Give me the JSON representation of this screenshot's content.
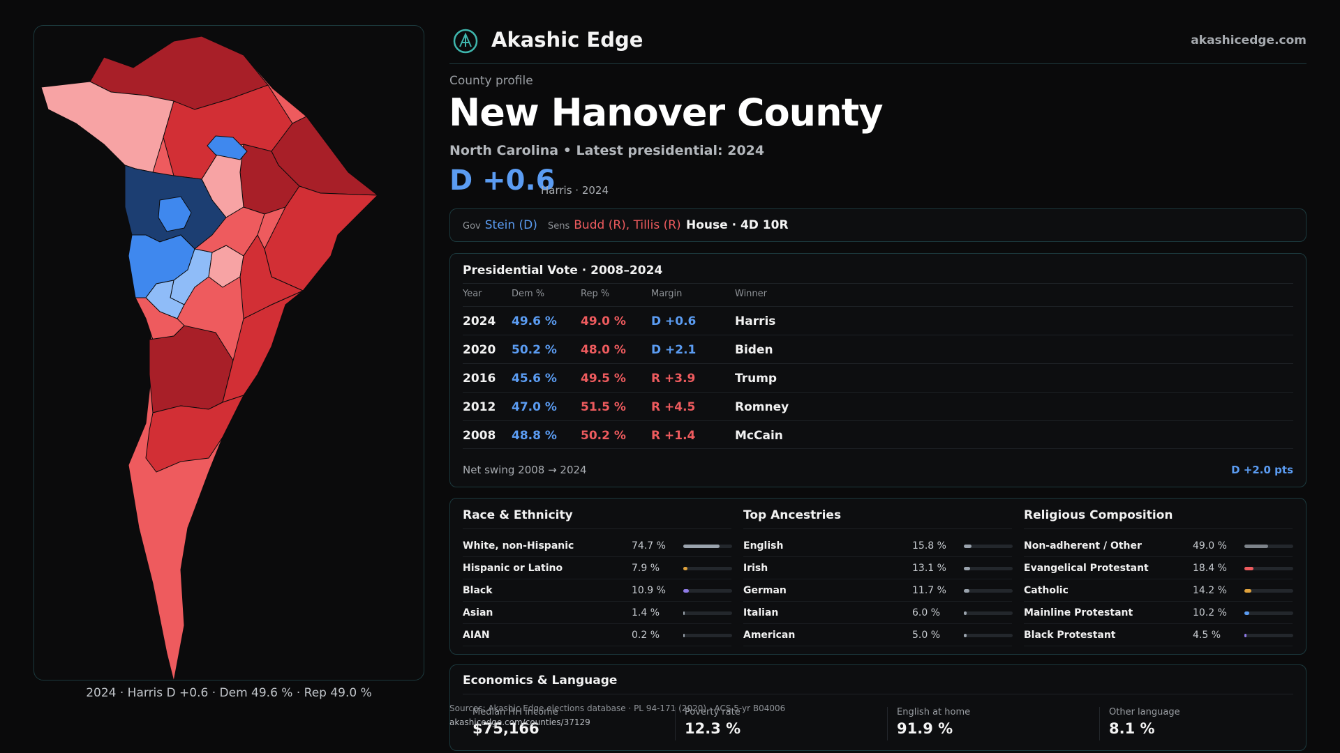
{
  "header": {
    "brand": "Akashic Edge",
    "site": "akashicedge.com"
  },
  "profile": {
    "eyebrow": "County profile",
    "county": "New Hanover County",
    "subtitle": "North Carolina • Latest presidential: 2024",
    "margin": "D +0.6",
    "margin_note": "Harris · 2024"
  },
  "offices": {
    "gov_label": "Gov",
    "gov_value": "Stein (D)",
    "sens_label": "Sens",
    "sens_value": "Budd (R), Tillis (R)",
    "house_value": "House · 4D 10R"
  },
  "presidential": {
    "title": "Presidential Vote · 2008–2024",
    "headers": [
      "Year",
      "Dem %",
      "Rep %",
      "Margin",
      "Winner"
    ],
    "rows": [
      {
        "year": "2024",
        "dem": "49.6 %",
        "rep": "49.0 %",
        "margin": "D +0.6",
        "winner": "Harris",
        "party": "D"
      },
      {
        "year": "2020",
        "dem": "50.2 %",
        "rep": "48.0 %",
        "margin": "D +2.1",
        "winner": "Biden",
        "party": "D"
      },
      {
        "year": "2016",
        "dem": "45.6 %",
        "rep": "49.5 %",
        "margin": "R +3.9",
        "winner": "Trump",
        "party": "R"
      },
      {
        "year": "2012",
        "dem": "47.0 %",
        "rep": "51.5 %",
        "margin": "R +4.5",
        "winner": "Romney",
        "party": "R"
      },
      {
        "year": "2008",
        "dem": "48.8 %",
        "rep": "50.2 %",
        "margin": "R +1.4",
        "winner": "McCain",
        "party": "R"
      }
    ],
    "swing_label": "Net swing 2008 → 2024",
    "swing_value": "D +2.0 pts"
  },
  "race": {
    "title": "Race & Ethnicity",
    "items": [
      {
        "label": "White, non-Hispanic",
        "pct": "74.7 %",
        "value": 0.747,
        "color": "#9aa3ad"
      },
      {
        "label": "Hispanic or Latino",
        "pct": "7.9 %",
        "value": 0.079,
        "color": "#e0a23c"
      },
      {
        "label": "Black",
        "pct": "10.9 %",
        "value": 0.109,
        "color": "#8f7be6"
      },
      {
        "label": "Asian",
        "pct": "1.4 %",
        "value": 0.014,
        "color": "#9aa3ad"
      },
      {
        "label": "AIAN",
        "pct": "0.2 %",
        "value": 0.002,
        "color": "#9aa3ad"
      }
    ]
  },
  "ancestry": {
    "title": "Top Ancestries",
    "items": [
      {
        "label": "English",
        "pct": "15.8 %",
        "value": 0.158,
        "color": "#9aa3ad"
      },
      {
        "label": "Irish",
        "pct": "13.1 %",
        "value": 0.131,
        "color": "#9aa3ad"
      },
      {
        "label": "German",
        "pct": "11.7 %",
        "value": 0.117,
        "color": "#9aa3ad"
      },
      {
        "label": "Italian",
        "pct": "6.0 %",
        "value": 0.06,
        "color": "#9aa3ad"
      },
      {
        "label": "American",
        "pct": "5.0 %",
        "value": 0.05,
        "color": "#9aa3ad"
      }
    ]
  },
  "religion": {
    "title": "Religious Composition",
    "items": [
      {
        "label": "Non-adherent / Other",
        "pct": "49.0 %",
        "value": 0.49,
        "color": "#7d838a"
      },
      {
        "label": "Evangelical Protestant",
        "pct": "18.4 %",
        "value": 0.184,
        "color": "#ee5b5e"
      },
      {
        "label": "Catholic",
        "pct": "14.2 %",
        "value": 0.142,
        "color": "#e0a23c"
      },
      {
        "label": "Mainline Protestant",
        "pct": "10.2 %",
        "value": 0.102,
        "color": "#5b9cf2"
      },
      {
        "label": "Black Protestant",
        "pct": "4.5 %",
        "value": 0.045,
        "color": "#8f7be6"
      }
    ]
  },
  "economics": {
    "title": "Economics & Language",
    "stats": [
      {
        "label": "Median HH income",
        "value": "$75,166"
      },
      {
        "label": "Poverty rate",
        "value": "12.3 %"
      },
      {
        "label": "English at home",
        "value": "91.9 %"
      },
      {
        "label": "Other language",
        "value": "8.1 %"
      }
    ]
  },
  "sources": {
    "line": "Sources: Akashic Edge elections database · PL 94-171 (2020) · ACS 5-yr B04006",
    "url": "akashicedge.com/counties/37129"
  },
  "map": {
    "caption": "2024 · Harris D +0.6 · Dem 49.6 % · Rep 49.0 %",
    "colors": {
      "safe_r": "#a81f28",
      "likely_r": "#d22f35",
      "lean_r": "#ee5b5e",
      "tilt_r": "#f7a3a4",
      "tilt_d": "#8fbcf8",
      "lean_d": "#3f88ee",
      "safe_d": "#1c3e72"
    }
  }
}
